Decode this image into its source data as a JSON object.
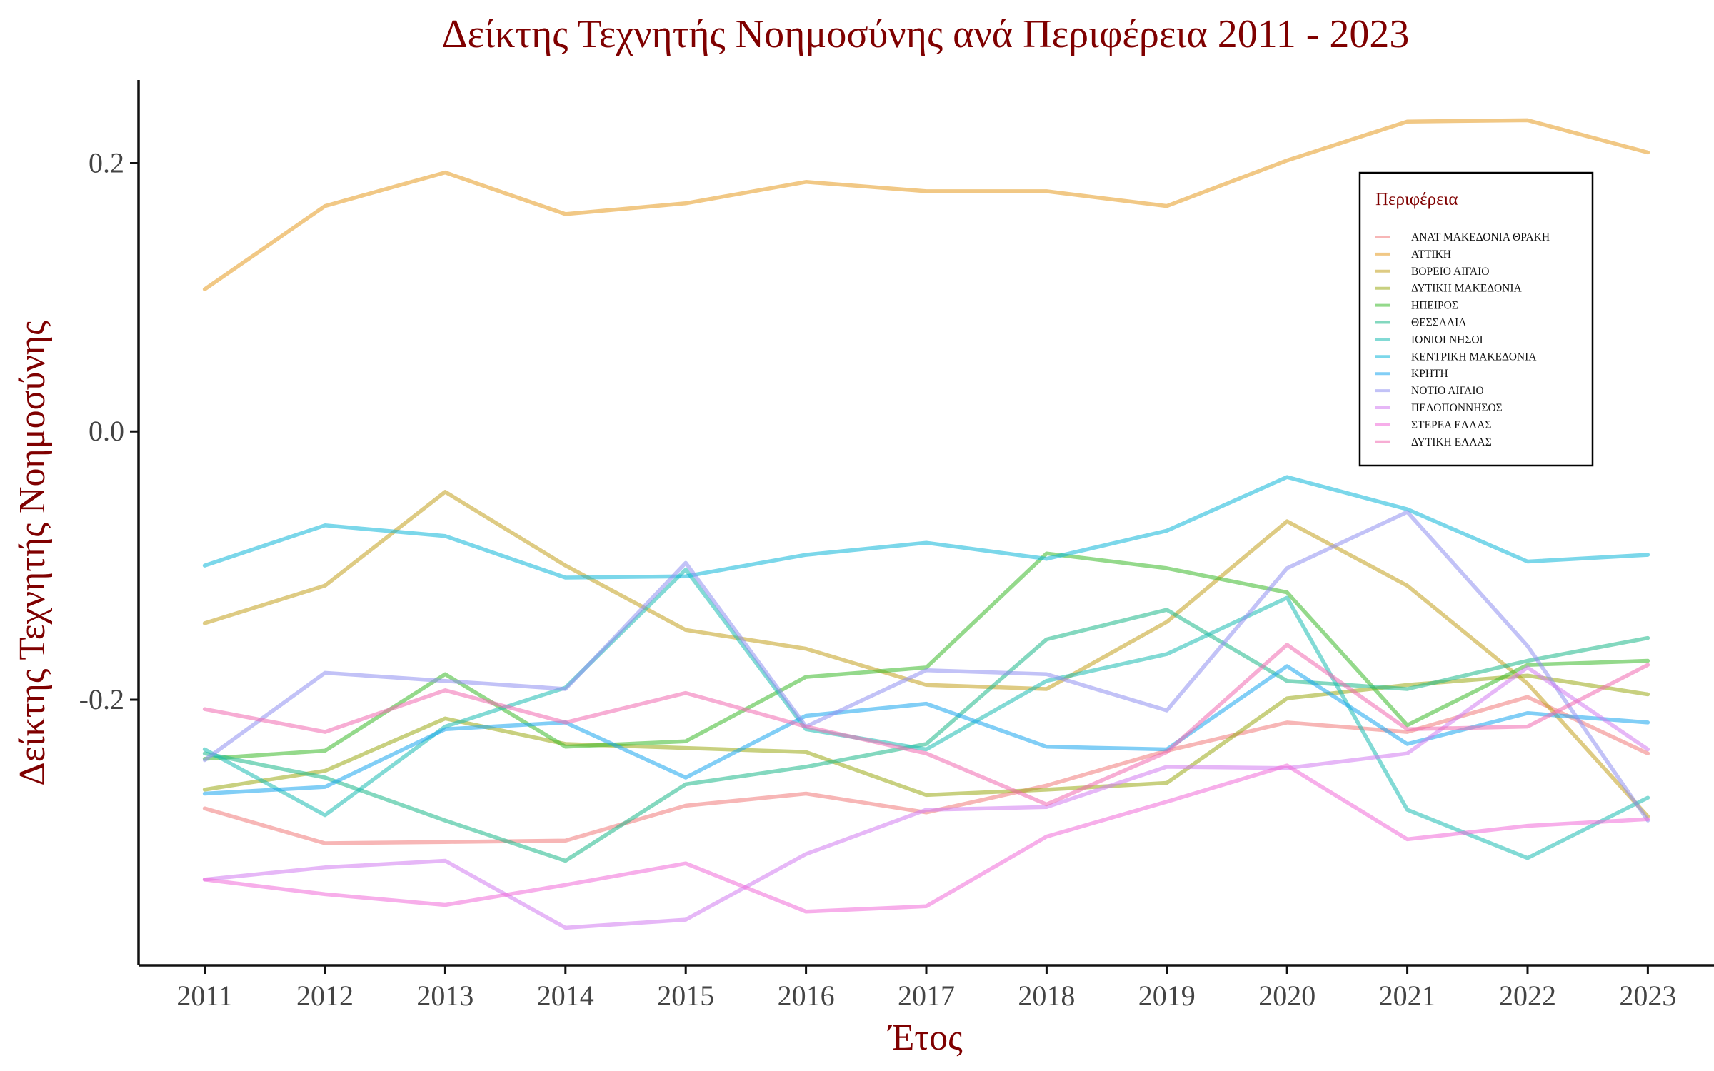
{
  "chart_data": {
    "type": "line",
    "title": "Δείκτης Τεχνητής Νοημοσύνης ανά Περιφέρεια 2011 - 2023",
    "xlabel": "Έτος",
    "ylabel": "Δείκτης Τεχνητής Νοημοσύνης",
    "x": [
      2011,
      2012,
      2013,
      2014,
      2015,
      2016,
      2017,
      2018,
      2019,
      2020,
      2021,
      2022,
      2023
    ],
    "x_tick_labels": [
      "2011",
      "2012",
      "2013",
      "2014",
      "2015",
      "2016",
      "2017",
      "2018",
      "2019",
      "2020",
      "2021",
      "2022",
      "2023"
    ],
    "y_ticks": [
      0.2,
      0.0,
      -0.2
    ],
    "y_tick_labels": [
      "0.2",
      "0.0",
      "-0.2"
    ],
    "ylim": [
      -0.398,
      0.262
    ],
    "xlim": [
      2010.45,
      2023.55
    ],
    "grid": false,
    "legend": {
      "title": "Περιφέρεια",
      "position": "top-right, inside plot"
    },
    "series": [
      {
        "name": "ΑΝΑΤ ΜΑΚΕΔΟΝΙΑ ΘΡΑΚΗ",
        "color": "#f07a7a",
        "values": [
          -0.281,
          -0.307,
          -0.306,
          -0.305,
          -0.279,
          -0.27,
          -0.284,
          -0.264,
          -0.238,
          -0.217,
          -0.224,
          -0.198,
          -0.24
        ]
      },
      {
        "name": "ΑΤΤΙΚΗ",
        "color": "#e69a20",
        "values": [
          0.106,
          0.168,
          0.193,
          0.162,
          0.17,
          0.186,
          0.179,
          0.179,
          0.168,
          0.202,
          0.231,
          0.232,
          0.208
        ]
      },
      {
        "name": "ΒΟΡΕΙΟ ΑΙΓΑΙΟ",
        "color": "#c2a11e",
        "values": [
          -0.143,
          -0.115,
          -0.045,
          -0.1,
          -0.148,
          -0.162,
          -0.189,
          -0.192,
          -0.142,
          -0.067,
          -0.115,
          -0.188,
          -0.287
        ]
      },
      {
        "name": "ΔΥΤΙΚΗ ΜΑΚΕΔΟΝΙΑ",
        "color": "#9aaa16",
        "values": [
          -0.267,
          -0.253,
          -0.214,
          -0.233,
          -0.236,
          -0.239,
          -0.271,
          -0.267,
          -0.262,
          -0.199,
          -0.189,
          -0.182,
          -0.196
        ]
      },
      {
        "name": "ΗΠΕΙΡΟΣ",
        "color": "#3cba2c",
        "values": [
          -0.244,
          -0.238,
          -0.181,
          -0.235,
          -0.231,
          -0.183,
          -0.176,
          -0.091,
          -0.102,
          -0.12,
          -0.219,
          -0.174,
          -0.171
        ]
      },
      {
        "name": "ΘΕΣΣΑΛΙΑ",
        "color": "#1db88a",
        "values": [
          -0.24,
          -0.258,
          -0.29,
          -0.32,
          -0.263,
          -0.25,
          -0.233,
          -0.155,
          -0.133,
          -0.186,
          -0.192,
          -0.171,
          -0.154
        ]
      },
      {
        "name": "ΙΟΝΙΟΙ ΝΗΣΟΙ",
        "color": "#1cbcb3",
        "values": [
          -0.237,
          -0.286,
          -0.22,
          -0.191,
          -0.103,
          -0.222,
          -0.237,
          -0.186,
          -0.166,
          -0.124,
          -0.282,
          -0.318,
          -0.273
        ]
      },
      {
        "name": "ΚΕΝΤΡΙΚΗ ΜΑΚΕΔΟΝΙΑ",
        "color": "#0fb7d9",
        "values": [
          -0.1,
          -0.07,
          -0.078,
          -0.109,
          -0.108,
          -0.092,
          -0.083,
          -0.095,
          -0.074,
          -0.034,
          -0.058,
          -0.097,
          -0.092
        ]
      },
      {
        "name": "ΚΡΗΤΗ",
        "color": "#1aa6ee",
        "values": [
          -0.27,
          -0.265,
          -0.222,
          -0.217,
          -0.258,
          -0.212,
          -0.203,
          -0.235,
          -0.237,
          -0.175,
          -0.233,
          -0.21,
          -0.217
        ]
      },
      {
        "name": "ΝΟΤΙΟ ΑΙΓΑΙΟ",
        "color": "#8f8ff0",
        "values": [
          -0.245,
          -0.18,
          -0.186,
          -0.192,
          -0.098,
          -0.22,
          -0.178,
          -0.181,
          -0.208,
          -0.102,
          -0.06,
          -0.16,
          -0.29
        ]
      },
      {
        "name": "ΠΕΛΟΠΟΝΝΗΣΟΣ",
        "color": "#d27cf0",
        "values": [
          -0.334,
          -0.325,
          -0.32,
          -0.37,
          -0.364,
          -0.315,
          -0.282,
          -0.28,
          -0.25,
          -0.251,
          -0.24,
          -0.176,
          -0.237
        ]
      },
      {
        "name": "ΣΤΕΡΕΑ ΕΛΛΑΣ",
        "color": "#f06cd8",
        "values": [
          -0.334,
          -0.345,
          -0.353,
          -0.338,
          -0.322,
          -0.358,
          -0.354,
          -0.302,
          -0.276,
          -0.249,
          -0.304,
          -0.294,
          -0.289
        ]
      },
      {
        "name": "ΔΥΤΙΚΗ ΕΛΛΑΣ",
        "color": "#f06ab0",
        "values": [
          -0.207,
          -0.224,
          -0.193,
          -0.217,
          -0.195,
          -0.22,
          -0.24,
          -0.278,
          -0.239,
          -0.159,
          -0.222,
          -0.22,
          -0.174
        ]
      }
    ]
  }
}
